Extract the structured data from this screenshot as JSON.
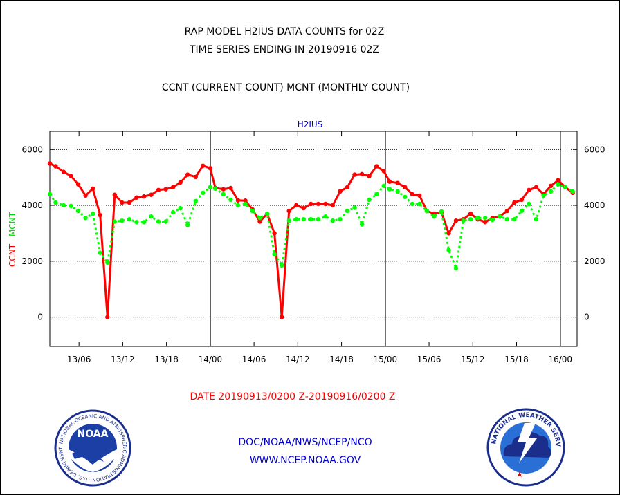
{
  "title": {
    "line1": "RAP MODEL H2IUS DATA COUNTS for 02Z",
    "line2": "TIME SERIES ENDING IN 20190916 02Z",
    "line3": "CCNT (CURRENT COUNT) MCNT (MONTHLY COUNT)"
  },
  "footer": {
    "date_range": "DATE 20190913/0200 Z-20190916/0200 Z",
    "credit_line1": "DOC/NOAA/NWS/NCEP/NCO",
    "credit_line2": "WWW.NCEP.NOAA.GOV"
  },
  "colors": {
    "ccnt": "#ff0000",
    "mcnt": "#00ff00",
    "panel_label": "#0000cc",
    "footer_text": "#0000cc",
    "date_text": "#ff0000"
  },
  "logos": {
    "left_text": "NATIONAL OCEANIC AND ATMOSPHERIC ADMINISTRATION · U.S. DEPARTMENT OF COMMERCE",
    "left_center": "NOAA",
    "right_text": "NATIONAL WEATHER SERVICE"
  },
  "chart_data": {
    "type": "line",
    "panel_label": "H2IUS",
    "xlabel": "",
    "ylabel_left_1": "CCNT",
    "ylabel_left_2": "MCNT",
    "ylim": [
      -1050,
      6650
    ],
    "y_ticks": [
      0,
      2000,
      4000,
      6000
    ],
    "y_tick_labels": [
      "0",
      "2000",
      "4000",
      "6000"
    ],
    "x_unit": "hours since 20190913/0200 Z",
    "xlim": [
      0,
      72.3
    ],
    "x_ticks": [
      4,
      10,
      16,
      22,
      28,
      34,
      40,
      46,
      52,
      58,
      64,
      70
    ],
    "x_tick_labels": [
      "13/06",
      "13/12",
      "13/18",
      "14/00",
      "14/06",
      "14/12",
      "14/18",
      "15/00",
      "15/06",
      "15/12",
      "15/18",
      "16/00"
    ],
    "day_boundaries": [
      22,
      46,
      70
    ],
    "grid": "horizontal dotted",
    "series": [
      {
        "name": "CCNT",
        "style": "solid",
        "color": "#ff0000",
        "x": [
          0,
          0.8,
          1.9,
          2.9,
          3.9,
          4.9,
          5.9,
          6.9,
          7.9,
          8.9,
          9.9,
          10.9,
          11.9,
          12.9,
          13.9,
          14.9,
          15.9,
          16.9,
          17.9,
          18.9,
          20.0,
          21.0,
          22.0,
          22.7,
          23.8,
          24.8,
          25.8,
          26.8,
          27.8,
          28.8,
          29.8,
          30.8,
          31.8,
          32.8,
          33.8,
          34.8,
          35.8,
          36.8,
          37.8,
          38.8,
          39.8,
          40.8,
          41.8,
          42.8,
          43.8,
          44.8,
          45.8,
          46.6,
          47.7,
          48.7,
          49.7,
          50.7,
          51.7,
          52.7,
          53.7,
          54.7,
          55.7,
          56.7,
          57.7,
          58.7,
          59.7,
          60.7,
          61.7,
          62.7,
          63.7,
          64.7,
          65.7,
          66.7,
          67.7,
          68.7,
          69.7,
          70.7,
          71.7
        ],
        "y": [
          5500,
          5400,
          5200,
          5050,
          4750,
          4350,
          4600,
          3650,
          0,
          4380,
          4100,
          4100,
          4280,
          4320,
          4380,
          4550,
          4580,
          4650,
          4820,
          5100,
          5020,
          5420,
          5330,
          4620,
          4580,
          4620,
          4180,
          4170,
          3850,
          3420,
          3700,
          3000,
          0,
          3800,
          4000,
          3900,
          4050,
          4050,
          4050,
          4000,
          4500,
          4650,
          5100,
          5120,
          5050,
          5400,
          5230,
          4850,
          4800,
          4650,
          4400,
          4350,
          3800,
          3700,
          3750,
          3000,
          3450,
          3500,
          3700,
          3500,
          3400,
          3550,
          3600,
          3800,
          4100,
          4200,
          4550,
          4650,
          4400,
          4700,
          4900,
          4650,
          4450
        ]
      },
      {
        "name": "MCNT",
        "style": "dotted",
        "color": "#00ff00",
        "x": [
          0,
          0.8,
          1.9,
          2.9,
          3.9,
          4.9,
          5.9,
          6.9,
          7.9,
          8.9,
          9.9,
          10.9,
          11.9,
          12.9,
          13.9,
          14.9,
          15.9,
          16.9,
          17.9,
          18.9,
          20.0,
          21.0,
          22.0,
          22.7,
          23.8,
          24.8,
          25.8,
          26.8,
          27.8,
          28.8,
          29.8,
          30.8,
          31.8,
          32.8,
          33.8,
          34.8,
          35.8,
          36.8,
          37.8,
          38.8,
          39.8,
          40.8,
          41.8,
          42.8,
          43.8,
          44.8,
          45.8,
          46.6,
          47.7,
          48.7,
          49.7,
          50.7,
          51.7,
          52.7,
          53.7,
          54.7,
          55.7,
          56.7,
          57.7,
          58.7,
          59.7,
          60.7,
          61.7,
          62.7,
          63.7,
          64.7,
          65.7,
          66.7,
          67.7,
          68.7,
          69.7,
          70.7,
          71.7
        ],
        "y": [
          4400,
          4100,
          4000,
          3980,
          3800,
          3550,
          3700,
          2300,
          1950,
          3420,
          3450,
          3500,
          3400,
          3400,
          3600,
          3420,
          3420,
          3750,
          3900,
          3300,
          4150,
          4450,
          4650,
          4600,
          4400,
          4200,
          4000,
          4050,
          3800,
          3550,
          3700,
          2250,
          1850,
          3450,
          3500,
          3500,
          3500,
          3500,
          3600,
          3450,
          3500,
          3800,
          3920,
          3320,
          4200,
          4400,
          4700,
          4580,
          4500,
          4300,
          4050,
          4050,
          3800,
          3600,
          3780,
          2400,
          1750,
          3450,
          3500,
          3550,
          3550,
          3480,
          3600,
          3500,
          3500,
          3800,
          4050,
          3500,
          4350,
          4500,
          4750,
          4650,
          4500
        ]
      }
    ]
  }
}
